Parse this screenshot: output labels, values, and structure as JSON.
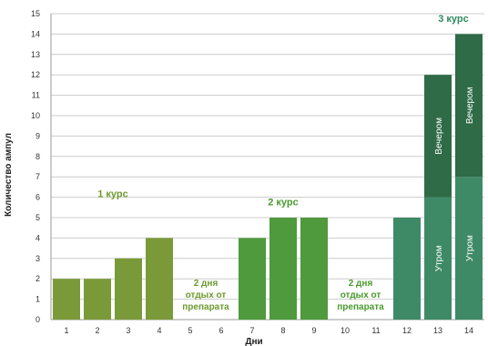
{
  "chart_data": {
    "type": "bar",
    "ylabel": "Количество ампул",
    "xlabel": "Дни",
    "ylim": [
      0,
      15
    ],
    "grid": true,
    "categories": [
      "1",
      "2",
      "3",
      "4",
      "5",
      "6",
      "7",
      "8",
      "9",
      "10",
      "11",
      "12",
      "13",
      "14"
    ],
    "series": [
      {
        "name": "Утром",
        "values": [
          2,
          2,
          3,
          4,
          0,
          0,
          4,
          5,
          5,
          0,
          0,
          5,
          6,
          7
        ]
      },
      {
        "name": "Вечером",
        "values": [
          0,
          0,
          0,
          0,
          0,
          0,
          0,
          0,
          0,
          0,
          0,
          0,
          6,
          7
        ]
      }
    ],
    "course_labels": [
      {
        "text": "1 курс",
        "day": 2.5,
        "y": 6.0
      },
      {
        "text": "2 курс",
        "day": 8,
        "y": 5.6
      },
      {
        "text": "3 курс",
        "day": 13.5,
        "y": 14.6
      }
    ],
    "rest_labels": [
      {
        "lines": [
          "2 дня",
          "отдых от",
          "препарата"
        ],
        "day": 5.5
      },
      {
        "lines": [
          "2 дня",
          "отдых от",
          "препарата"
        ],
        "day": 10.5
      }
    ],
    "colors": {
      "course1": "#7a9a3a",
      "course2": "#4e9a3c",
      "course3": "#3f8a66",
      "evening": "#2e6b46",
      "label1": "#6f9a2e",
      "label2": "#4a9a2e",
      "label3": "#2e8a5e",
      "grid": "#cccccc",
      "axis": "#999999"
    }
  }
}
